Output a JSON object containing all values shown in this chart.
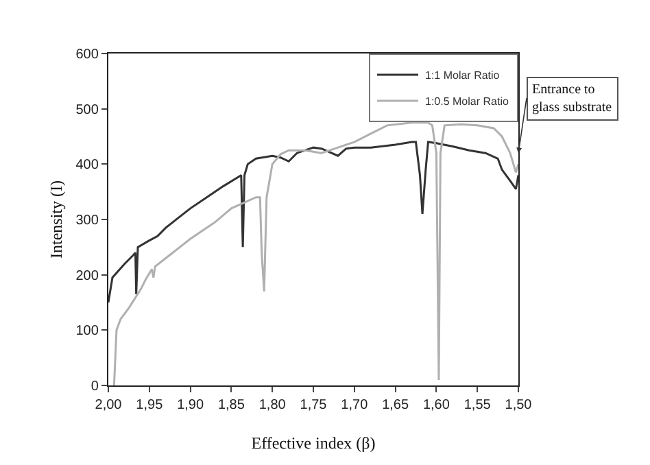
{
  "chart_data": {
    "type": "line",
    "xlabel": "Effective index (β)",
    "ylabel": "Intensity (I)",
    "xlim": [
      2.0,
      1.5
    ],
    "ylim": [
      0,
      600
    ],
    "xticks": [
      {
        "value": 2.0,
        "label": "2,00"
      },
      {
        "value": 1.95,
        "label": "1,95"
      },
      {
        "value": 1.9,
        "label": "1,90"
      },
      {
        "value": 1.85,
        "label": "1,85"
      },
      {
        "value": 1.8,
        "label": "1,80"
      },
      {
        "value": 1.75,
        "label": "1,75"
      },
      {
        "value": 1.7,
        "label": "1,70"
      },
      {
        "value": 1.65,
        "label": "1,65"
      },
      {
        "value": 1.6,
        "label": "1,60"
      },
      {
        "value": 1.55,
        "label": "1,55"
      },
      {
        "value": 1.5,
        "label": "1,50"
      }
    ],
    "yticks": [
      0,
      100,
      200,
      300,
      400,
      500,
      600
    ],
    "grid": false,
    "legend": "top right",
    "marker": "none",
    "line_style": "solid",
    "annotations": [
      {
        "text": "Entrance to\nglass substrate",
        "x": 1.5,
        "y": 420
      }
    ],
    "series": [
      {
        "name": "1:1 Molar Ratio",
        "color": "#333333",
        "x": [
          2.0,
          1.995,
          1.98,
          1.97,
          1.967,
          1.966,
          1.964,
          1.95,
          1.94,
          1.93,
          1.9,
          1.88,
          1.86,
          1.84,
          1.838,
          1.836,
          1.834,
          1.83,
          1.82,
          1.8,
          1.79,
          1.78,
          1.77,
          1.75,
          1.74,
          1.72,
          1.71,
          1.7,
          1.68,
          1.65,
          1.63,
          1.625,
          1.62,
          1.617,
          1.613,
          1.61,
          1.6,
          1.58,
          1.56,
          1.54,
          1.525,
          1.52,
          1.51,
          1.503,
          1.5
        ],
        "values": [
          150,
          195,
          220,
          235,
          240,
          165,
          250,
          262,
          270,
          285,
          320,
          340,
          360,
          378,
          380,
          250,
          380,
          400,
          410,
          415,
          412,
          405,
          420,
          430,
          428,
          415,
          428,
          430,
          430,
          435,
          440,
          440,
          380,
          310,
          390,
          440,
          438,
          432,
          425,
          420,
          410,
          390,
          370,
          355,
          380
        ]
      },
      {
        "name": "1:0.5 Molar Ratio",
        "color": "#b0b0b0",
        "x": [
          1.993,
          1.99,
          1.985,
          1.975,
          1.96,
          1.955,
          1.947,
          1.945,
          1.943,
          1.93,
          1.9,
          1.87,
          1.85,
          1.82,
          1.815,
          1.813,
          1.81,
          1.807,
          1.8,
          1.79,
          1.78,
          1.76,
          1.74,
          1.72,
          1.7,
          1.68,
          1.66,
          1.63,
          1.61,
          1.605,
          1.6,
          1.597,
          1.595,
          1.59,
          1.57,
          1.55,
          1.53,
          1.52,
          1.51,
          1.503,
          1.5
        ],
        "values": [
          0,
          100,
          120,
          140,
          175,
          190,
          210,
          195,
          215,
          230,
          265,
          295,
          320,
          340,
          340,
          240,
          170,
          340,
          400,
          418,
          425,
          425,
          420,
          430,
          440,
          455,
          470,
          475,
          475,
          470,
          420,
          10,
          420,
          470,
          472,
          470,
          465,
          450,
          420,
          385,
          400
        ]
      }
    ]
  }
}
